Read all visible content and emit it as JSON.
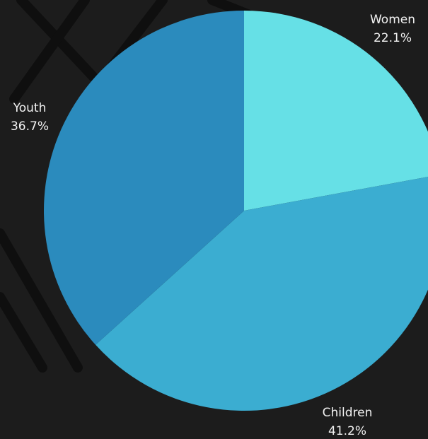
{
  "chart_data": {
    "type": "pie",
    "categories": [
      "Women",
      "Children",
      "Youth"
    ],
    "values": [
      22.1,
      41.2,
      36.7
    ],
    "value_labels": [
      "22.1%",
      "41.2%",
      "36.7%"
    ],
    "colors": [
      "#66e0e6",
      "#3badd1",
      "#2b8bbd"
    ]
  }
}
